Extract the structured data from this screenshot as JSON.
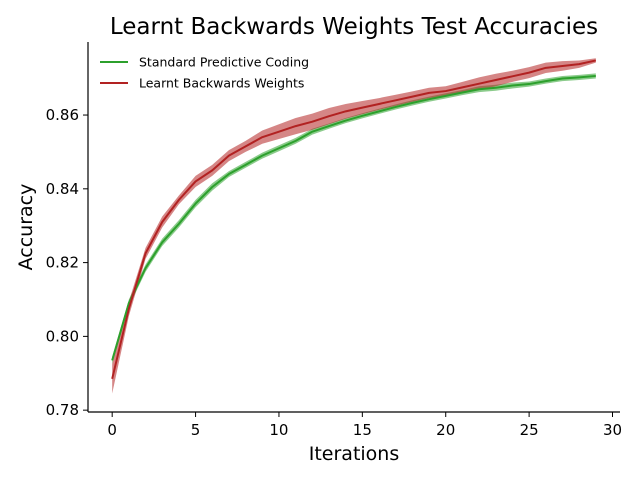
{
  "chart_data": {
    "type": "line",
    "title": "Learnt Backwards Weights Test Accuracies",
    "xlabel": "Iterations",
    "ylabel": "Accuracy",
    "xlim": [
      -1.45,
      30.45
    ],
    "ylim": [
      0.7795,
      0.8798
    ],
    "xticks": [
      0,
      5,
      10,
      15,
      20,
      25,
      30
    ],
    "xtick_labels": [
      "0",
      "5",
      "10",
      "15",
      "20",
      "25",
      "30"
    ],
    "yticks": [
      0.78,
      0.8,
      0.82,
      0.84,
      0.86
    ],
    "ytick_labels": [
      "0.78",
      "0.80",
      "0.82",
      "0.84",
      "0.86"
    ],
    "grid": false,
    "legend": "top-left",
    "x": [
      0,
      1,
      2,
      3,
      4,
      5,
      6,
      7,
      8,
      9,
      10,
      11,
      12,
      13,
      14,
      15,
      16,
      17,
      18,
      19,
      20,
      21,
      22,
      23,
      24,
      25,
      26,
      27,
      28,
      29
    ],
    "series": [
      {
        "name": "Standard Predictive Coding",
        "color": "#2ca02c",
        "values": [
          0.7935,
          0.809,
          0.8185,
          0.8255,
          0.8305,
          0.836,
          0.8405,
          0.844,
          0.8465,
          0.849,
          0.851,
          0.853,
          0.8555,
          0.857,
          0.8585,
          0.8598,
          0.861,
          0.8622,
          0.8633,
          0.8643,
          0.8652,
          0.8661,
          0.867,
          0.8674,
          0.868,
          0.8684,
          0.8692,
          0.8699,
          0.8702,
          0.8706
        ],
        "lower": [
          0.7925,
          0.808,
          0.8175,
          0.8245,
          0.8295,
          0.835,
          0.8395,
          0.8432,
          0.8457,
          0.8482,
          0.8502,
          0.8522,
          0.8547,
          0.8563,
          0.8578,
          0.8591,
          0.8603,
          0.8615,
          0.8626,
          0.8636,
          0.8645,
          0.8654,
          0.8662,
          0.8666,
          0.8672,
          0.8677,
          0.8685,
          0.8692,
          0.8695,
          0.8699
        ],
        "upper": [
          0.7945,
          0.81,
          0.8195,
          0.8265,
          0.8315,
          0.837,
          0.8415,
          0.8448,
          0.8473,
          0.8498,
          0.8518,
          0.8538,
          0.8563,
          0.8577,
          0.8592,
          0.8605,
          0.8617,
          0.8629,
          0.864,
          0.865,
          0.8659,
          0.8668,
          0.8678,
          0.8682,
          0.8688,
          0.8691,
          0.8699,
          0.8706,
          0.8709,
          0.8713
        ]
      },
      {
        "name": "Learnt Backwards Weights",
        "color": "#b22222",
        "values": [
          0.7885,
          0.8075,
          0.8225,
          0.831,
          0.837,
          0.842,
          0.845,
          0.849,
          0.8515,
          0.854,
          0.8555,
          0.857,
          0.8582,
          0.8597,
          0.861,
          0.862,
          0.863,
          0.864,
          0.865,
          0.866,
          0.8665,
          0.8675,
          0.8685,
          0.8695,
          0.8705,
          0.8715,
          0.8728,
          0.8733,
          0.8738,
          0.8748
        ],
        "lower": [
          0.7845,
          0.8055,
          0.821,
          0.8295,
          0.8358,
          0.8405,
          0.8435,
          0.8475,
          0.85,
          0.8522,
          0.8535,
          0.8548,
          0.856,
          0.8575,
          0.859,
          0.8602,
          0.8614,
          0.8625,
          0.8636,
          0.8646,
          0.8652,
          0.866,
          0.8668,
          0.8678,
          0.869,
          0.87,
          0.8714,
          0.872,
          0.8728,
          0.8742
        ],
        "upper": [
          0.7925,
          0.8095,
          0.824,
          0.8325,
          0.8382,
          0.8435,
          0.8465,
          0.8505,
          0.853,
          0.8558,
          0.8575,
          0.8592,
          0.8604,
          0.8619,
          0.863,
          0.8638,
          0.8646,
          0.8655,
          0.8664,
          0.8674,
          0.8678,
          0.869,
          0.8702,
          0.8712,
          0.872,
          0.873,
          0.8742,
          0.8746,
          0.8748,
          0.8754
        ]
      }
    ]
  }
}
